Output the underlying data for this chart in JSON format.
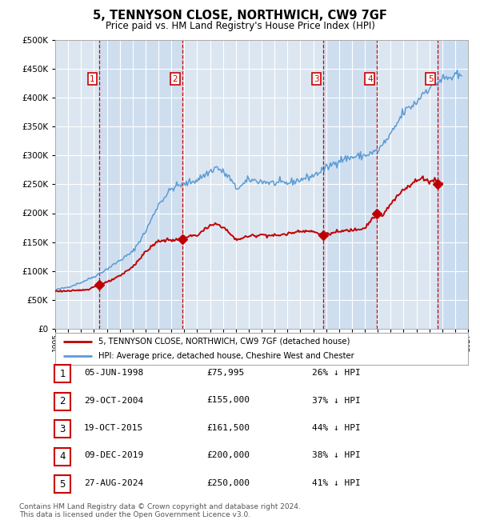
{
  "title": "5, TENNYSON CLOSE, NORTHWICH, CW9 7GF",
  "subtitle": "Price paid vs. HM Land Registry's House Price Index (HPI)",
  "legend_line1": "5, TENNYSON CLOSE, NORTHWICH, CW9 7GF (detached house)",
  "legend_line2": "HPI: Average price, detached house, Cheshire West and Chester",
  "footer1": "Contains HM Land Registry data © Crown copyright and database right 2024.",
  "footer2": "This data is licensed under the Open Government Licence v3.0.",
  "sales": [
    {
      "num": 1,
      "date_str": "05-JUN-1998",
      "date_x": 1998.43,
      "price": 75995,
      "price_str": "£75,995",
      "pct": "26% ↓ HPI"
    },
    {
      "num": 2,
      "date_str": "29-OCT-2004",
      "date_x": 2004.83,
      "price": 155000,
      "price_str": "£155,000",
      "pct": "37% ↓ HPI"
    },
    {
      "num": 3,
      "date_str": "19-OCT-2015",
      "date_x": 2015.8,
      "price": 161500,
      "price_str": "£161,500",
      "pct": "44% ↓ HPI"
    },
    {
      "num": 4,
      "date_str": "09-DEC-2019",
      "date_x": 2019.94,
      "price": 200000,
      "price_str": "£200,000",
      "pct": "38% ↓ HPI"
    },
    {
      "num": 5,
      "date_str": "27-AUG-2024",
      "date_x": 2024.66,
      "price": 250000,
      "price_str": "£250,000",
      "pct": "41% ↓ HPI"
    }
  ],
  "hpi_color": "#5b9bd5",
  "sales_color": "#c00000",
  "dashed_color": "#cc0000",
  "bg_color": "#dce6f1",
  "grid_color": "#ffffff",
  "ylim": [
    0,
    500000
  ],
  "xlim_min": 1995.0,
  "xlim_max": 2027.0,
  "yticks": [
    0,
    50000,
    100000,
    150000,
    200000,
    250000,
    300000,
    350000,
    400000,
    450000,
    500000
  ]
}
